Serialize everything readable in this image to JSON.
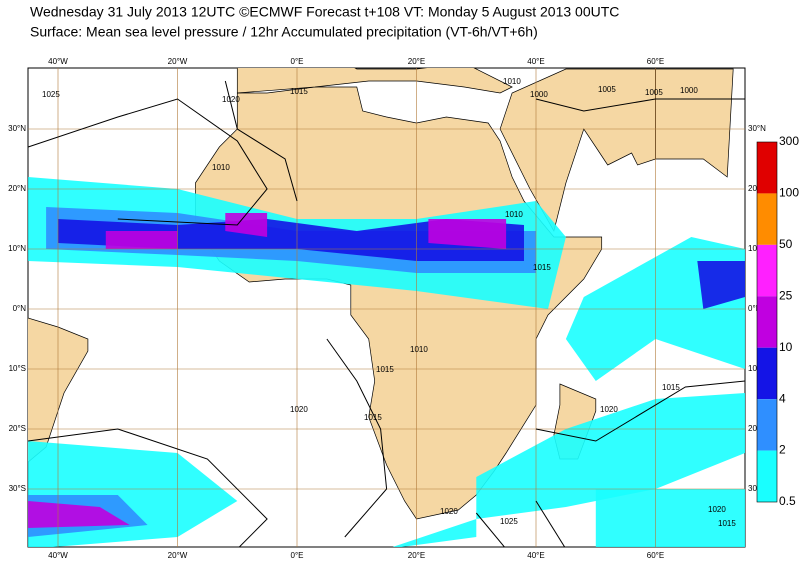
{
  "header": {
    "title": "Wednesday 31 July 2013 12UTC ©ECMWF Forecast t+108 VT: Monday 5 August 2013 00UTC",
    "subtitle": "Surface: Mean sea level pressure / 12hr Accumulated precipitation (VT-6h/VT+6h)"
  },
  "map": {
    "lon_labels": [
      "40°W",
      "20°W",
      "0°E",
      "20°E",
      "40°E",
      "60°E"
    ],
    "lat_labels": [
      "30°N",
      "20°N",
      "10°N",
      "0°N",
      "10°S",
      "20°S",
      "30°S"
    ],
    "contour_labels": [
      "1025",
      "1020",
      "1015",
      "1010",
      "1010",
      "1005",
      "1005",
      "1000",
      "1000",
      "1010",
      "1015",
      "1010",
      "1015",
      "1020",
      "1015",
      "1015",
      "1020",
      "1020",
      "1025",
      "1020",
      "1015"
    ]
  },
  "colorbar": {
    "labels": [
      "300",
      "100",
      "50",
      "25",
      "10",
      "4",
      "2",
      "0.5"
    ],
    "colors": [
      "#e00000",
      "#ff8c00",
      "#ff20ff",
      "#c000e0",
      "#1414e6",
      "#2f8fff",
      "#19ffff"
    ]
  }
}
